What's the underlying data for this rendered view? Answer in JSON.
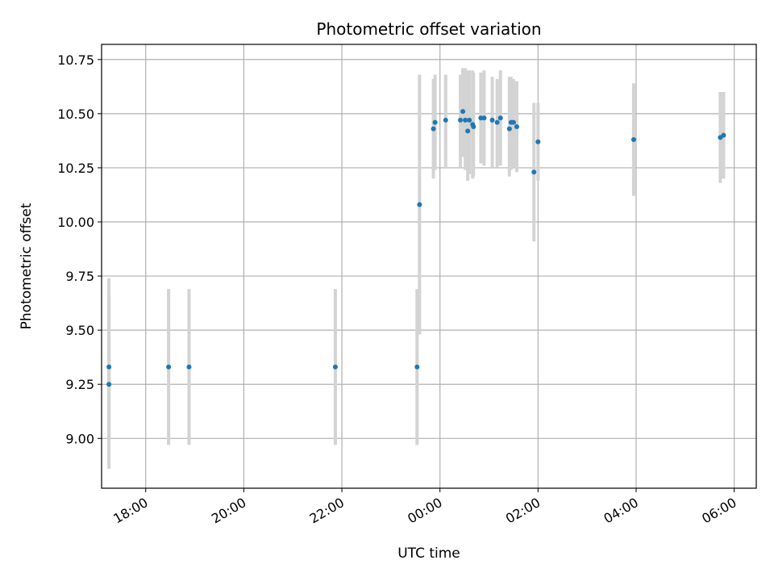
{
  "chart_data": {
    "type": "scatter",
    "title": "Photometric offset variation",
    "xlabel": "UTC time",
    "ylabel": "Photometric offset",
    "x_unit": "UTC, hours (times after midnight continue past 24)",
    "xlim": [
      "17:06",
      "30:27"
    ],
    "ylim": [
      8.77,
      10.82
    ],
    "x_ticks": [
      "18:00",
      "20:00",
      "22:00",
      "00:00",
      "02:00",
      "04:00",
      "06:00"
    ],
    "y_ticks": [
      "9.00",
      "9.25",
      "9.50",
      "9.75",
      "10.00",
      "10.25",
      "10.50",
      "10.75"
    ],
    "grid": true,
    "colors": {
      "point": "#1f77b4",
      "errorbar": "#d3d3d3",
      "grid": "#b0b0b0"
    },
    "points": [
      {
        "t": "17:15",
        "y": 9.33,
        "ylo": 9.0,
        "yhi": 9.74
      },
      {
        "t": "17:15",
        "y": 9.25,
        "ylo": 8.86,
        "yhi": 9.65
      },
      {
        "t": "18:28",
        "y": 9.33,
        "ylo": 8.97,
        "yhi": 9.69
      },
      {
        "t": "18:53",
        "y": 9.33,
        "ylo": 8.97,
        "yhi": 9.69
      },
      {
        "t": "21:52",
        "y": 9.33,
        "ylo": 8.97,
        "yhi": 9.69
      },
      {
        "t": "23:32",
        "y": 9.33,
        "ylo": 8.97,
        "yhi": 9.69
      },
      {
        "t": "23:35",
        "y": 10.08,
        "ylo": 9.48,
        "yhi": 10.68
      },
      {
        "t": "23:52",
        "y": 10.43,
        "ylo": 10.2,
        "yhi": 10.66
      },
      {
        "t": "23:54",
        "y": 10.46,
        "ylo": 10.24,
        "yhi": 10.68
      },
      {
        "t": "00:07",
        "y": 10.47,
        "ylo": 10.25,
        "yhi": 10.68
      },
      {
        "t": "00:25",
        "y": 10.47,
        "ylo": 10.25,
        "yhi": 10.68
      },
      {
        "t": "00:28",
        "y": 10.51,
        "ylo": 10.3,
        "yhi": 10.71
      },
      {
        "t": "00:31",
        "y": 10.47,
        "ylo": 10.24,
        "yhi": 10.71
      },
      {
        "t": "00:34",
        "y": 10.42,
        "ylo": 10.19,
        "yhi": 10.7
      },
      {
        "t": "00:36",
        "y": 10.47,
        "ylo": 10.22,
        "yhi": 10.7
      },
      {
        "t": "00:40",
        "y": 10.45,
        "ylo": 10.2,
        "yhi": 10.7
      },
      {
        "t": "00:41",
        "y": 10.44,
        "ylo": 10.21,
        "yhi": 10.69
      },
      {
        "t": "00:50",
        "y": 10.48,
        "ylo": 10.27,
        "yhi": 10.69
      },
      {
        "t": "00:54",
        "y": 10.48,
        "ylo": 10.26,
        "yhi": 10.7
      },
      {
        "t": "01:04",
        "y": 10.47,
        "ylo": 10.25,
        "yhi": 10.67
      },
      {
        "t": "01:10",
        "y": 10.46,
        "ylo": 10.25,
        "yhi": 10.66
      },
      {
        "t": "01:14",
        "y": 10.48,
        "ylo": 10.26,
        "yhi": 10.7
      },
      {
        "t": "01:25",
        "y": 10.43,
        "ylo": 10.21,
        "yhi": 10.67
      },
      {
        "t": "01:27",
        "y": 10.46,
        "ylo": 10.24,
        "yhi": 10.67
      },
      {
        "t": "01:30",
        "y": 10.46,
        "ylo": 10.25,
        "yhi": 10.66
      },
      {
        "t": "01:34",
        "y": 10.44,
        "ylo": 10.23,
        "yhi": 10.65
      },
      {
        "t": "01:55",
        "y": 10.23,
        "ylo": 9.91,
        "yhi": 10.55
      },
      {
        "t": "02:00",
        "y": 10.37,
        "ylo": 10.19,
        "yhi": 10.55
      },
      {
        "t": "03:57",
        "y": 10.38,
        "ylo": 10.12,
        "yhi": 10.64
      },
      {
        "t": "05:43",
        "y": 10.39,
        "ylo": 10.18,
        "yhi": 10.6
      },
      {
        "t": "05:47",
        "y": 10.4,
        "ylo": 10.2,
        "yhi": 10.6
      }
    ]
  }
}
